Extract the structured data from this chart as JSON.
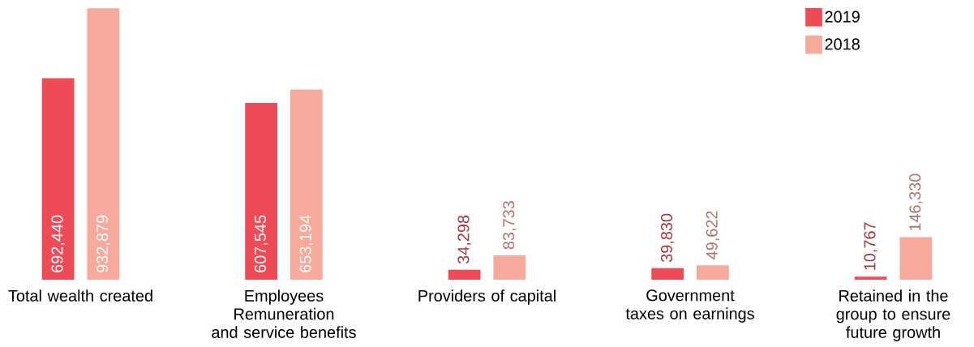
{
  "chart_data": {
    "type": "bar",
    "categories": [
      "Total wealth created",
      "Employees Remuneration and service benefits",
      "Providers of capital",
      "Government taxes on earnings",
      "Retained in the group to ensure future growth"
    ],
    "series": [
      {
        "name": "2019",
        "color": "#ef4b57",
        "values": [
          692440,
          607545,
          34298,
          39830,
          10767
        ],
        "value_labels": [
          "692,440",
          "607,545",
          "34,298",
          "39,830",
          "10,767"
        ]
      },
      {
        "name": "2018",
        "color": "#f7a99c",
        "values": [
          932879,
          653194,
          83733,
          49622,
          146330
        ],
        "value_labels": [
          "932,879",
          "653,194",
          "83,733",
          "49,622",
          "146,330"
        ]
      }
    ],
    "legend": "top right",
    "grid": false
  }
}
